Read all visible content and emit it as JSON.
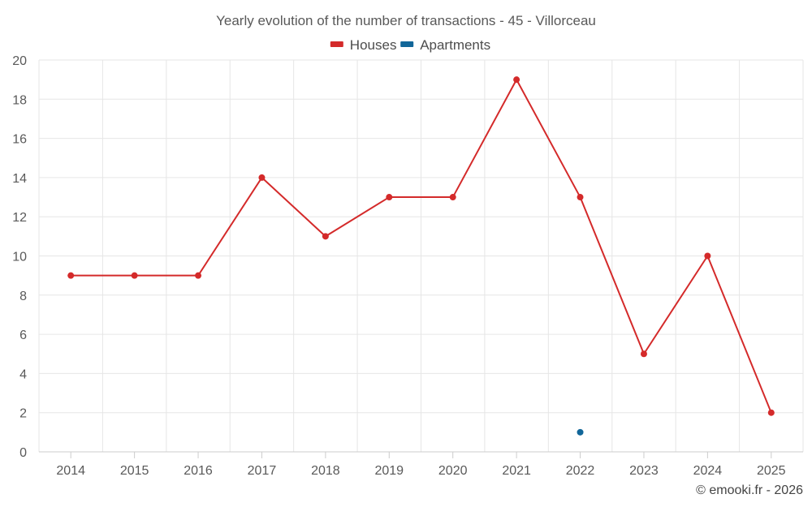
{
  "credit": "© emooki.fr - 2026",
  "chart_data": {
    "type": "line",
    "title": "Yearly evolution of the number of transactions - 45 - Villorceau",
    "xlabel": "",
    "ylabel": "",
    "categories": [
      "2014",
      "2015",
      "2016",
      "2017",
      "2018",
      "2019",
      "2020",
      "2021",
      "2022",
      "2023",
      "2024",
      "2025"
    ],
    "ylim": [
      0,
      20
    ],
    "yticks": [
      0,
      2,
      4,
      6,
      8,
      10,
      12,
      14,
      16,
      18,
      20
    ],
    "grid": true,
    "legend_position": "top-center",
    "series": [
      {
        "name": "Houses",
        "color": "#d42a2a",
        "values": [
          9,
          9,
          9,
          14,
          11,
          13,
          13,
          19,
          13,
          5,
          10,
          2
        ]
      },
      {
        "name": "Apartments",
        "color": "#116699",
        "values": [
          null,
          null,
          null,
          null,
          null,
          null,
          null,
          null,
          1,
          null,
          null,
          null
        ]
      }
    ]
  }
}
